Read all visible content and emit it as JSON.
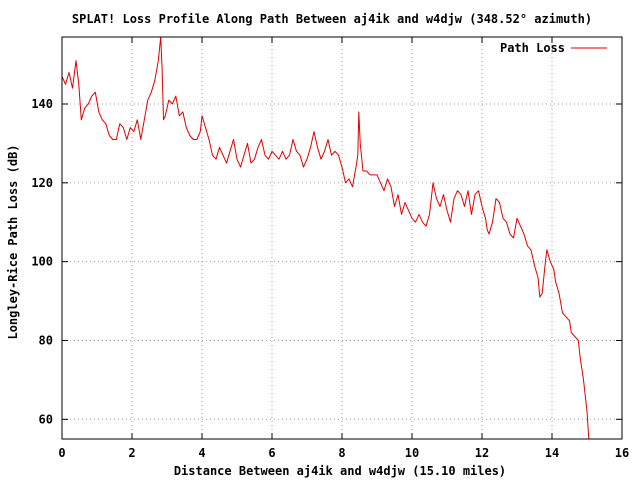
{
  "chart_data": {
    "type": "line",
    "title": "SPLAT! Loss Profile Along Path Between aj4ik and w4djw (348.52° azimuth)",
    "xlabel": "Distance Between aj4ik and w4djw (15.10 miles)",
    "ylabel": "Longley-Rice Path Loss (dB)",
    "xlim": [
      0,
      16
    ],
    "ylim": [
      55,
      157
    ],
    "x_ticks": [
      "0",
      "2",
      "4",
      "6",
      "8",
      "10",
      "12",
      "14",
      "16"
    ],
    "y_ticks": [
      "60",
      "80",
      "100",
      "120",
      "140"
    ],
    "grid": true,
    "legend_position": "top-right",
    "series": [
      {
        "name": "Path Loss",
        "color": "#e00000",
        "points": [
          [
            0.0,
            147
          ],
          [
            0.1,
            145
          ],
          [
            0.2,
            148
          ],
          [
            0.3,
            144
          ],
          [
            0.4,
            151
          ],
          [
            0.48,
            145
          ],
          [
            0.55,
            136
          ],
          [
            0.65,
            139
          ],
          [
            0.75,
            140
          ],
          [
            0.85,
            142
          ],
          [
            0.95,
            143
          ],
          [
            1.05,
            138
          ],
          [
            1.15,
            136
          ],
          [
            1.25,
            135
          ],
          [
            1.35,
            132
          ],
          [
            1.45,
            131
          ],
          [
            1.55,
            131
          ],
          [
            1.65,
            135
          ],
          [
            1.75,
            134
          ],
          [
            1.85,
            131
          ],
          [
            1.95,
            134
          ],
          [
            2.05,
            133
          ],
          [
            2.15,
            136
          ],
          [
            2.25,
            131
          ],
          [
            2.35,
            136
          ],
          [
            2.45,
            141
          ],
          [
            2.55,
            143
          ],
          [
            2.65,
            146
          ],
          [
            2.75,
            151
          ],
          [
            2.82,
            157
          ],
          [
            2.86,
            149
          ],
          [
            2.9,
            136
          ],
          [
            2.95,
            137
          ],
          [
            3.05,
            141
          ],
          [
            3.15,
            140
          ],
          [
            3.25,
            142
          ],
          [
            3.35,
            137
          ],
          [
            3.45,
            138
          ],
          [
            3.55,
            134
          ],
          [
            3.65,
            132
          ],
          [
            3.75,
            131
          ],
          [
            3.85,
            131
          ],
          [
            3.95,
            133
          ],
          [
            4.0,
            137
          ],
          [
            4.1,
            134
          ],
          [
            4.2,
            131
          ],
          [
            4.3,
            127
          ],
          [
            4.4,
            126
          ],
          [
            4.5,
            129
          ],
          [
            4.6,
            127
          ],
          [
            4.7,
            125
          ],
          [
            4.8,
            128
          ],
          [
            4.9,
            131
          ],
          [
            5.0,
            126
          ],
          [
            5.1,
            124
          ],
          [
            5.2,
            127
          ],
          [
            5.3,
            130
          ],
          [
            5.4,
            125
          ],
          [
            5.5,
            126
          ],
          [
            5.6,
            129
          ],
          [
            5.7,
            131
          ],
          [
            5.8,
            127
          ],
          [
            5.9,
            126
          ],
          [
            6.0,
            128
          ],
          [
            6.1,
            127
          ],
          [
            6.2,
            126
          ],
          [
            6.3,
            128
          ],
          [
            6.4,
            126
          ],
          [
            6.5,
            127
          ],
          [
            6.6,
            131
          ],
          [
            6.7,
            128
          ],
          [
            6.8,
            127
          ],
          [
            6.9,
            124
          ],
          [
            7.0,
            126
          ],
          [
            7.1,
            129
          ],
          [
            7.2,
            133
          ],
          [
            7.3,
            129
          ],
          [
            7.4,
            126
          ],
          [
            7.5,
            128
          ],
          [
            7.6,
            131
          ],
          [
            7.7,
            127
          ],
          [
            7.8,
            128
          ],
          [
            7.9,
            127
          ],
          [
            8.0,
            124
          ],
          [
            8.1,
            120
          ],
          [
            8.2,
            121
          ],
          [
            8.3,
            119
          ],
          [
            8.4,
            124
          ],
          [
            8.45,
            127
          ],
          [
            8.48,
            138
          ],
          [
            8.52,
            130
          ],
          [
            8.6,
            123
          ],
          [
            8.7,
            123
          ],
          [
            8.8,
            122
          ],
          [
            8.9,
            122
          ],
          [
            9.0,
            122
          ],
          [
            9.1,
            120
          ],
          [
            9.2,
            118
          ],
          [
            9.3,
            121
          ],
          [
            9.4,
            119
          ],
          [
            9.5,
            114
          ],
          [
            9.6,
            117
          ],
          [
            9.7,
            112
          ],
          [
            9.8,
            115
          ],
          [
            9.9,
            113
          ],
          [
            10.0,
            111
          ],
          [
            10.1,
            110
          ],
          [
            10.2,
            112
          ],
          [
            10.3,
            110
          ],
          [
            10.4,
            109
          ],
          [
            10.5,
            112
          ],
          [
            10.55,
            116
          ],
          [
            10.6,
            120
          ],
          [
            10.7,
            116
          ],
          [
            10.8,
            114
          ],
          [
            10.9,
            117
          ],
          [
            11.0,
            113
          ],
          [
            11.1,
            110
          ],
          [
            11.2,
            116
          ],
          [
            11.3,
            118
          ],
          [
            11.4,
            117
          ],
          [
            11.5,
            114
          ],
          [
            11.6,
            118
          ],
          [
            11.7,
            112
          ],
          [
            11.8,
            117
          ],
          [
            11.9,
            118
          ],
          [
            12.0,
            114
          ],
          [
            12.1,
            111
          ],
          [
            12.15,
            108
          ],
          [
            12.2,
            107
          ],
          [
            12.3,
            110
          ],
          [
            12.4,
            116
          ],
          [
            12.5,
            115
          ],
          [
            12.6,
            111
          ],
          [
            12.7,
            110
          ],
          [
            12.8,
            107
          ],
          [
            12.9,
            106
          ],
          [
            13.0,
            111
          ],
          [
            13.1,
            109
          ],
          [
            13.2,
            107
          ],
          [
            13.3,
            104
          ],
          [
            13.4,
            103
          ],
          [
            13.5,
            99
          ],
          [
            13.6,
            96
          ],
          [
            13.65,
            91
          ],
          [
            13.72,
            92
          ],
          [
            13.8,
            99
          ],
          [
            13.85,
            103
          ],
          [
            13.95,
            100
          ],
          [
            14.05,
            98
          ],
          [
            14.1,
            95
          ],
          [
            14.2,
            92
          ],
          [
            14.3,
            87
          ],
          [
            14.4,
            86
          ],
          [
            14.5,
            85
          ],
          [
            14.55,
            82
          ],
          [
            14.65,
            81
          ],
          [
            14.75,
            80
          ],
          [
            14.8,
            76
          ],
          [
            14.9,
            70
          ],
          [
            15.0,
            62
          ],
          [
            15.05,
            55
          ]
        ]
      }
    ]
  }
}
